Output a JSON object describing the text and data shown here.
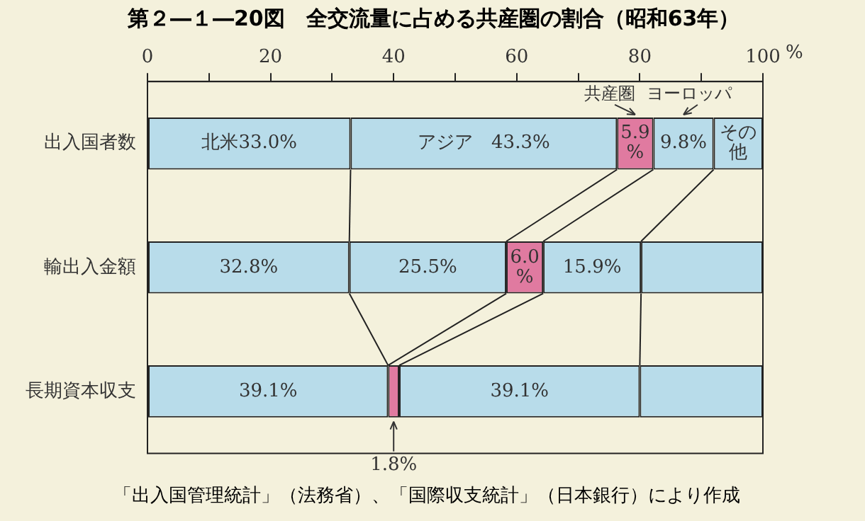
{
  "chart_data": {
    "type": "bar",
    "orientation": "horizontal",
    "stacked": true,
    "title": "第２―１―20図　全交流量に占める共産圏の割合（昭和63年）",
    "xlabel": "%",
    "categories": [
      "出入国者数",
      "輸出入金額",
      "長期資本収支"
    ],
    "xlim": [
      0,
      100
    ],
    "xticks": [
      0,
      {
        "value": 10,
        "label": null
      },
      20,
      {
        "value": 30,
        "label": null
      },
      40,
      {
        "value": 50,
        "label": null
      },
      60,
      {
        "value": 70,
        "label": null
      },
      80,
      {
        "value": 90,
        "label": null
      },
      100
    ],
    "grid": false,
    "legend": false,
    "series": [
      {
        "color": "#b8dcea",
        "values": [
          33.0,
          32.8,
          39.1
        ],
        "value_labels": [
          "北米33.0%",
          "32.8%",
          "39.1%"
        ]
      },
      {
        "color": "#b8dcea",
        "values": [
          43.3,
          25.5,
          0
        ],
        "value_labels": [
          "アジア　43.3%",
          "25.5%",
          null
        ]
      },
      {
        "name": "共産圏",
        "color": "#e07aa0",
        "values": [
          5.9,
          6.0,
          1.8
        ],
        "value_labels": [
          "5.9%",
          "6.0%",
          "1.8%"
        ]
      },
      {
        "name": "ヨーロッパ",
        "color": "#b8dcea",
        "values": [
          9.8,
          15.9,
          39.1
        ],
        "value_labels": [
          "9.8%",
          "15.9%",
          "39.1%"
        ]
      },
      {
        "name": "その他",
        "color": "#b8dcea",
        "values": [
          8.0,
          19.8,
          20.0
        ],
        "value_labels": [
          null,
          null,
          null
        ]
      }
    ],
    "annotations": [
      "「出入国管理統計」（法務省）、「国際収支統計」（日本銀行）により作成"
    ]
  }
}
